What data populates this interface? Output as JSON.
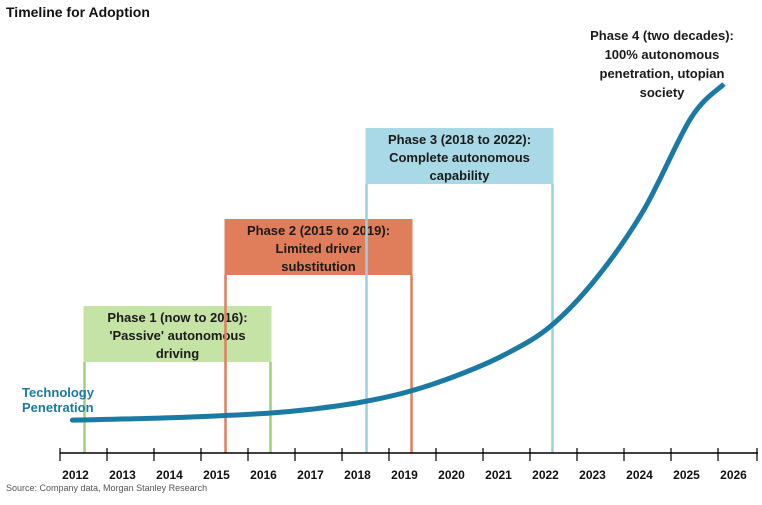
{
  "title": "Timeline for Adoption",
  "source": "Source: Company data, Morgan Stanley Research",
  "colors": {
    "curve": "#1b7aa3",
    "phase1": "#c5e3a5",
    "phase1_line": "#9fd07a",
    "phase2": "#e07e5b",
    "phase2_line": "#de7f5f",
    "phase3": "#a9d9e6",
    "phase3_line": "#9ad0e0",
    "axis": "#000000"
  },
  "chart_data": {
    "type": "line",
    "title": "Timeline for Adoption",
    "series": [
      {
        "name": "Technology Penetration",
        "x": [
          2012,
          2014,
          2016,
          2017,
          2018,
          2019,
          2020,
          2021,
          2022,
          2023,
          2024,
          2025,
          2025.7
        ],
        "values": [
          1.0,
          1.7,
          3.0,
          4.3,
          6.3,
          9.4,
          14.0,
          20.0,
          28.5,
          43.0,
          63.0,
          90.0,
          100.0
        ]
      }
    ],
    "categories": [
      "2012",
      "2013",
      "2014",
      "2015",
      "2016",
      "2017",
      "2018",
      "2019",
      "2020",
      "2021",
      "2022",
      "2023",
      "2024",
      "2025",
      "2026"
    ],
    "xlim": [
      2012,
      2026
    ],
    "ylim": [
      0,
      100
    ],
    "phases": [
      {
        "lines": [
          "Phase 1 (now to 2016):",
          "'Passive' autonomous",
          "driving"
        ],
        "start": 2012.5,
        "end": 2016.5,
        "color_key": "phase1"
      },
      {
        "lines": [
          "Phase 2 (2015 to 2019):",
          "Limited driver",
          "substitution"
        ],
        "start": 2015.5,
        "end": 2019.5,
        "color_key": "phase2"
      },
      {
        "lines": [
          "Phase 3 (2018 to 2022):",
          "Complete autonomous",
          "capability"
        ],
        "start": 2018.5,
        "end": 2022.5,
        "color_key": "phase3"
      },
      {
        "lines": [
          "Phase 4 (two decades):",
          "100% autonomous",
          "penetration, utopian",
          "society"
        ],
        "color_key": "none"
      }
    ],
    "legend": "left",
    "grid": false
  }
}
